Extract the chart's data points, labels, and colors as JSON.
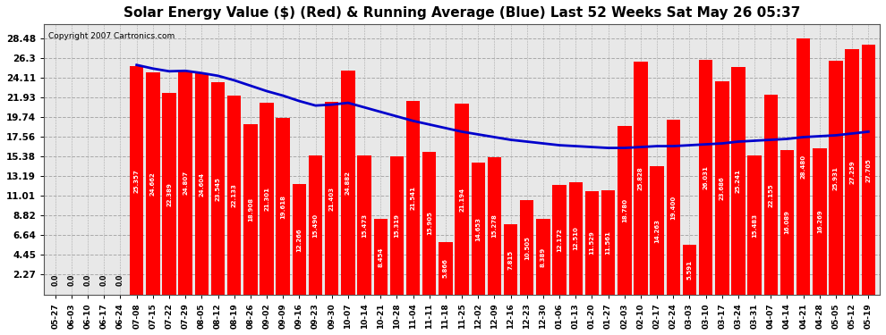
{
  "title": "Solar Energy Value ($) (Red) & Running Average (Blue) Last 52 Weeks Sat May 26 05:37",
  "copyright": "Copyright 2007 Cartronics.com",
  "bar_color": "#ff0000",
  "line_color": "#0000cc",
  "bg_color": "#ffffff",
  "grid_color": "#aaaaaa",
  "yticks": [
    2.27,
    4.45,
    6.64,
    8.82,
    11.01,
    13.19,
    15.38,
    17.56,
    19.74,
    21.93,
    24.11,
    26.3,
    28.48
  ],
  "dates": [
    "05-27",
    "06-03",
    "06-10",
    "06-17",
    "06-24",
    "07-08",
    "07-15",
    "07-22",
    "07-29",
    "08-05",
    "08-12",
    "08-19",
    "08-26",
    "09-02",
    "09-09",
    "09-16",
    "09-23",
    "09-30",
    "10-07",
    "10-14",
    "10-21",
    "10-28",
    "11-04",
    "11-11",
    "11-18",
    "11-25",
    "12-02",
    "12-09",
    "12-16",
    "12-23",
    "12-30",
    "01-06",
    "01-13",
    "01-20",
    "01-27",
    "02-03",
    "02-10",
    "02-17",
    "02-24",
    "03-03",
    "03-10",
    "03-17",
    "03-24",
    "03-31",
    "04-07",
    "04-14",
    "04-21",
    "04-28",
    "05-05",
    "05-12",
    "05-19"
  ],
  "values": [
    0.0,
    0.0,
    0.0,
    0.0,
    0.0,
    25.357,
    24.662,
    22.389,
    24.807,
    24.604,
    23.545,
    22.133,
    18.908,
    21.301,
    19.618,
    12.266,
    15.49,
    21.403,
    24.882,
    15.473,
    8.454,
    15.319,
    21.541,
    15.905,
    5.866,
    21.194,
    14.653,
    15.278,
    7.815,
    10.505,
    8.389,
    12.172,
    12.51,
    11.529,
    11.561,
    18.78,
    25.828,
    14.263,
    19.4,
    5.591,
    26.031,
    23.686,
    25.241,
    15.483,
    22.155,
    16.089,
    28.48,
    16.269,
    25.931,
    27.259,
    27.705
  ],
  "avg_values": [
    null,
    null,
    null,
    null,
    null,
    25.5,
    25.1,
    24.8,
    24.85,
    24.6,
    24.3,
    23.8,
    23.2,
    22.6,
    22.1,
    21.5,
    21.0,
    21.1,
    21.3,
    20.8,
    20.3,
    19.8,
    19.3,
    18.9,
    18.5,
    18.1,
    17.8,
    17.5,
    17.2,
    17.0,
    16.8,
    16.6,
    16.5,
    16.4,
    16.3,
    16.3,
    16.4,
    16.5,
    16.5,
    16.6,
    16.7,
    16.8,
    17.0,
    17.1,
    17.2,
    17.3,
    17.5,
    17.6,
    17.7,
    17.9,
    18.1
  ]
}
